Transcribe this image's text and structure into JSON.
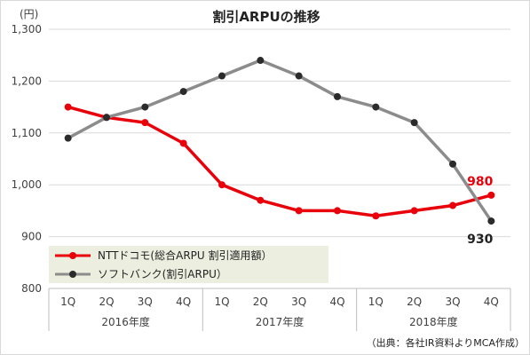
{
  "chart_data": {
    "type": "line",
    "title": "割引ARPUの推移",
    "unit_label": "(円)",
    "source": "（出典：各社IR資料よりMCA作成）",
    "categories": [
      "1Q",
      "2Q",
      "3Q",
      "4Q",
      "1Q",
      "2Q",
      "3Q",
      "4Q",
      "1Q",
      "2Q",
      "3Q",
      "4Q"
    ],
    "year_groups": [
      {
        "label": "2016年度",
        "count": 4
      },
      {
        "label": "2017年度",
        "count": 4
      },
      {
        "label": "2018年度",
        "count": 4
      }
    ],
    "ylim": [
      800,
      1300
    ],
    "yticks": [
      800,
      900,
      1000,
      1100,
      1200,
      1300
    ],
    "ytick_labels": [
      "800",
      "900",
      "1,000",
      "1,100",
      "1,200",
      "1,300"
    ],
    "grid": true,
    "legend_position": "bottom-left",
    "series": [
      {
        "name": "NTTドコモ(総合ARPU 割引適用額）",
        "color": "#e8000b",
        "values": [
          1150,
          1130,
          1120,
          1080,
          1000,
          970,
          950,
          950,
          940,
          950,
          960,
          980
        ],
        "end_label": "980"
      },
      {
        "name": "ソフトバンク(割引ARPU）",
        "color": "#8c8c8c",
        "values": [
          1090,
          1130,
          1150,
          1180,
          1210,
          1240,
          1210,
          1170,
          1150,
          1120,
          1040,
          930
        ],
        "end_label": "930"
      }
    ]
  }
}
